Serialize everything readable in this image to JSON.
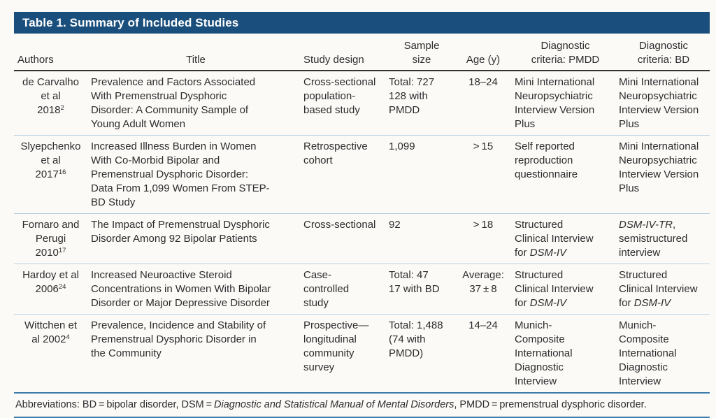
{
  "table_title": "Table 1. Summary of Included Studies",
  "colors": {
    "header_bar": "#1a4e7c",
    "header_rule": "#343434",
    "row_rule": "#b9cfe0",
    "footer_rule": "#3e7bab"
  },
  "headers": {
    "authors": "Authors",
    "title": "Title",
    "design": "Study design",
    "sample": "Sample\nsize",
    "age": "Age (y)",
    "pmdd": "Diagnostic\ncriteria: PMDD",
    "bd": "Diagnostic\ncriteria: BD"
  },
  "rows": [
    {
      "authors_lines": "de Carvalho\net al",
      "authors_year": "2018",
      "authors_ref": "2",
      "title": "Prevalence and Factors Associated\nWith Premenstrual Dysphoric\nDisorder: A Community Sample of\nYoung Adult Women",
      "design": "Cross-sectional\npopulation-\nbased study",
      "sample": "Total: 727\n128 with\nPMDD",
      "age": "18–24",
      "pmdd": "Mini International\nNeuropsychiatric\nInterview Version\nPlus",
      "bd": "Mini International\nNeuropsychiatric\nInterview Version\nPlus"
    },
    {
      "authors_lines": "Slyepchenko\net al",
      "authors_year": "2017",
      "authors_ref": "16",
      "title": "Increased Illness Burden in Women\nWith Co-Morbid Bipolar and\nPremenstrual Dysphoric Disorder:\nData From 1,099 Women From STEP-\nBD Study",
      "design": "Retrospective\ncohort",
      "sample": "1,099",
      "age": "> 15",
      "pmdd": "Self reported\nreproduction\nquestionnaire",
      "bd": "Mini International\nNeuropsychiatric\nInterview Version\nPlus"
    },
    {
      "authors_lines": "Fornaro and\nPerugi",
      "authors_year": "2010",
      "authors_ref": "17",
      "title": "The Impact of Premenstrual Dysphoric\nDisorder Among 92 Bipolar Patients",
      "design": "Cross-sectional",
      "sample": "92",
      "age": "> 18",
      "pmdd_pre": "Structured\nClinical Interview\nfor ",
      "pmdd_italic": "DSM-IV",
      "bd_italic": "DSM-IV-TR",
      "bd_post": ",\nsemistructured\ninterview"
    },
    {
      "authors_lines": "Hardoy et al",
      "authors_year": "2006",
      "authors_ref": "24",
      "title": "Increased Neuroactive Steroid\nConcentrations in Women With Bipolar\nDisorder or Major Depressive Disorder",
      "design": "Case-\ncontrolled\nstudy",
      "sample": "Total: 47\n17 with BD",
      "age": "Average:\n37 ± 8",
      "pmdd_pre": "Structured\nClinical Interview\nfor ",
      "pmdd_italic": "DSM-IV",
      "bd_pre": "Structured\nClinical Interview\nfor ",
      "bd_italic": "DSM-IV"
    },
    {
      "authors_lines": "Wittchen et",
      "authors_year": "al 2002",
      "authors_ref": "4",
      "title": "Prevalence, Incidence and Stability of\nPremenstrual Dysphoric Disorder in\nthe Community",
      "design": "Prospective—\nlongitudinal\ncommunity\nsurvey",
      "sample": "Total: 1,488\n(74 with\nPMDD)",
      "age": "14–24",
      "pmdd": "Munich-\nComposite\nInternational\nDiagnostic\nInterview",
      "bd": "Munich-\nComposite\nInternational\nDiagnostic\nInterview"
    }
  ],
  "footnote": {
    "pre": "Abbreviations: BD = bipolar disorder, DSM = ",
    "italic": "Diagnostic and Statistical Manual of Mental Disorders",
    "post": ", PMDD = premenstrual dysphoric disorder."
  }
}
